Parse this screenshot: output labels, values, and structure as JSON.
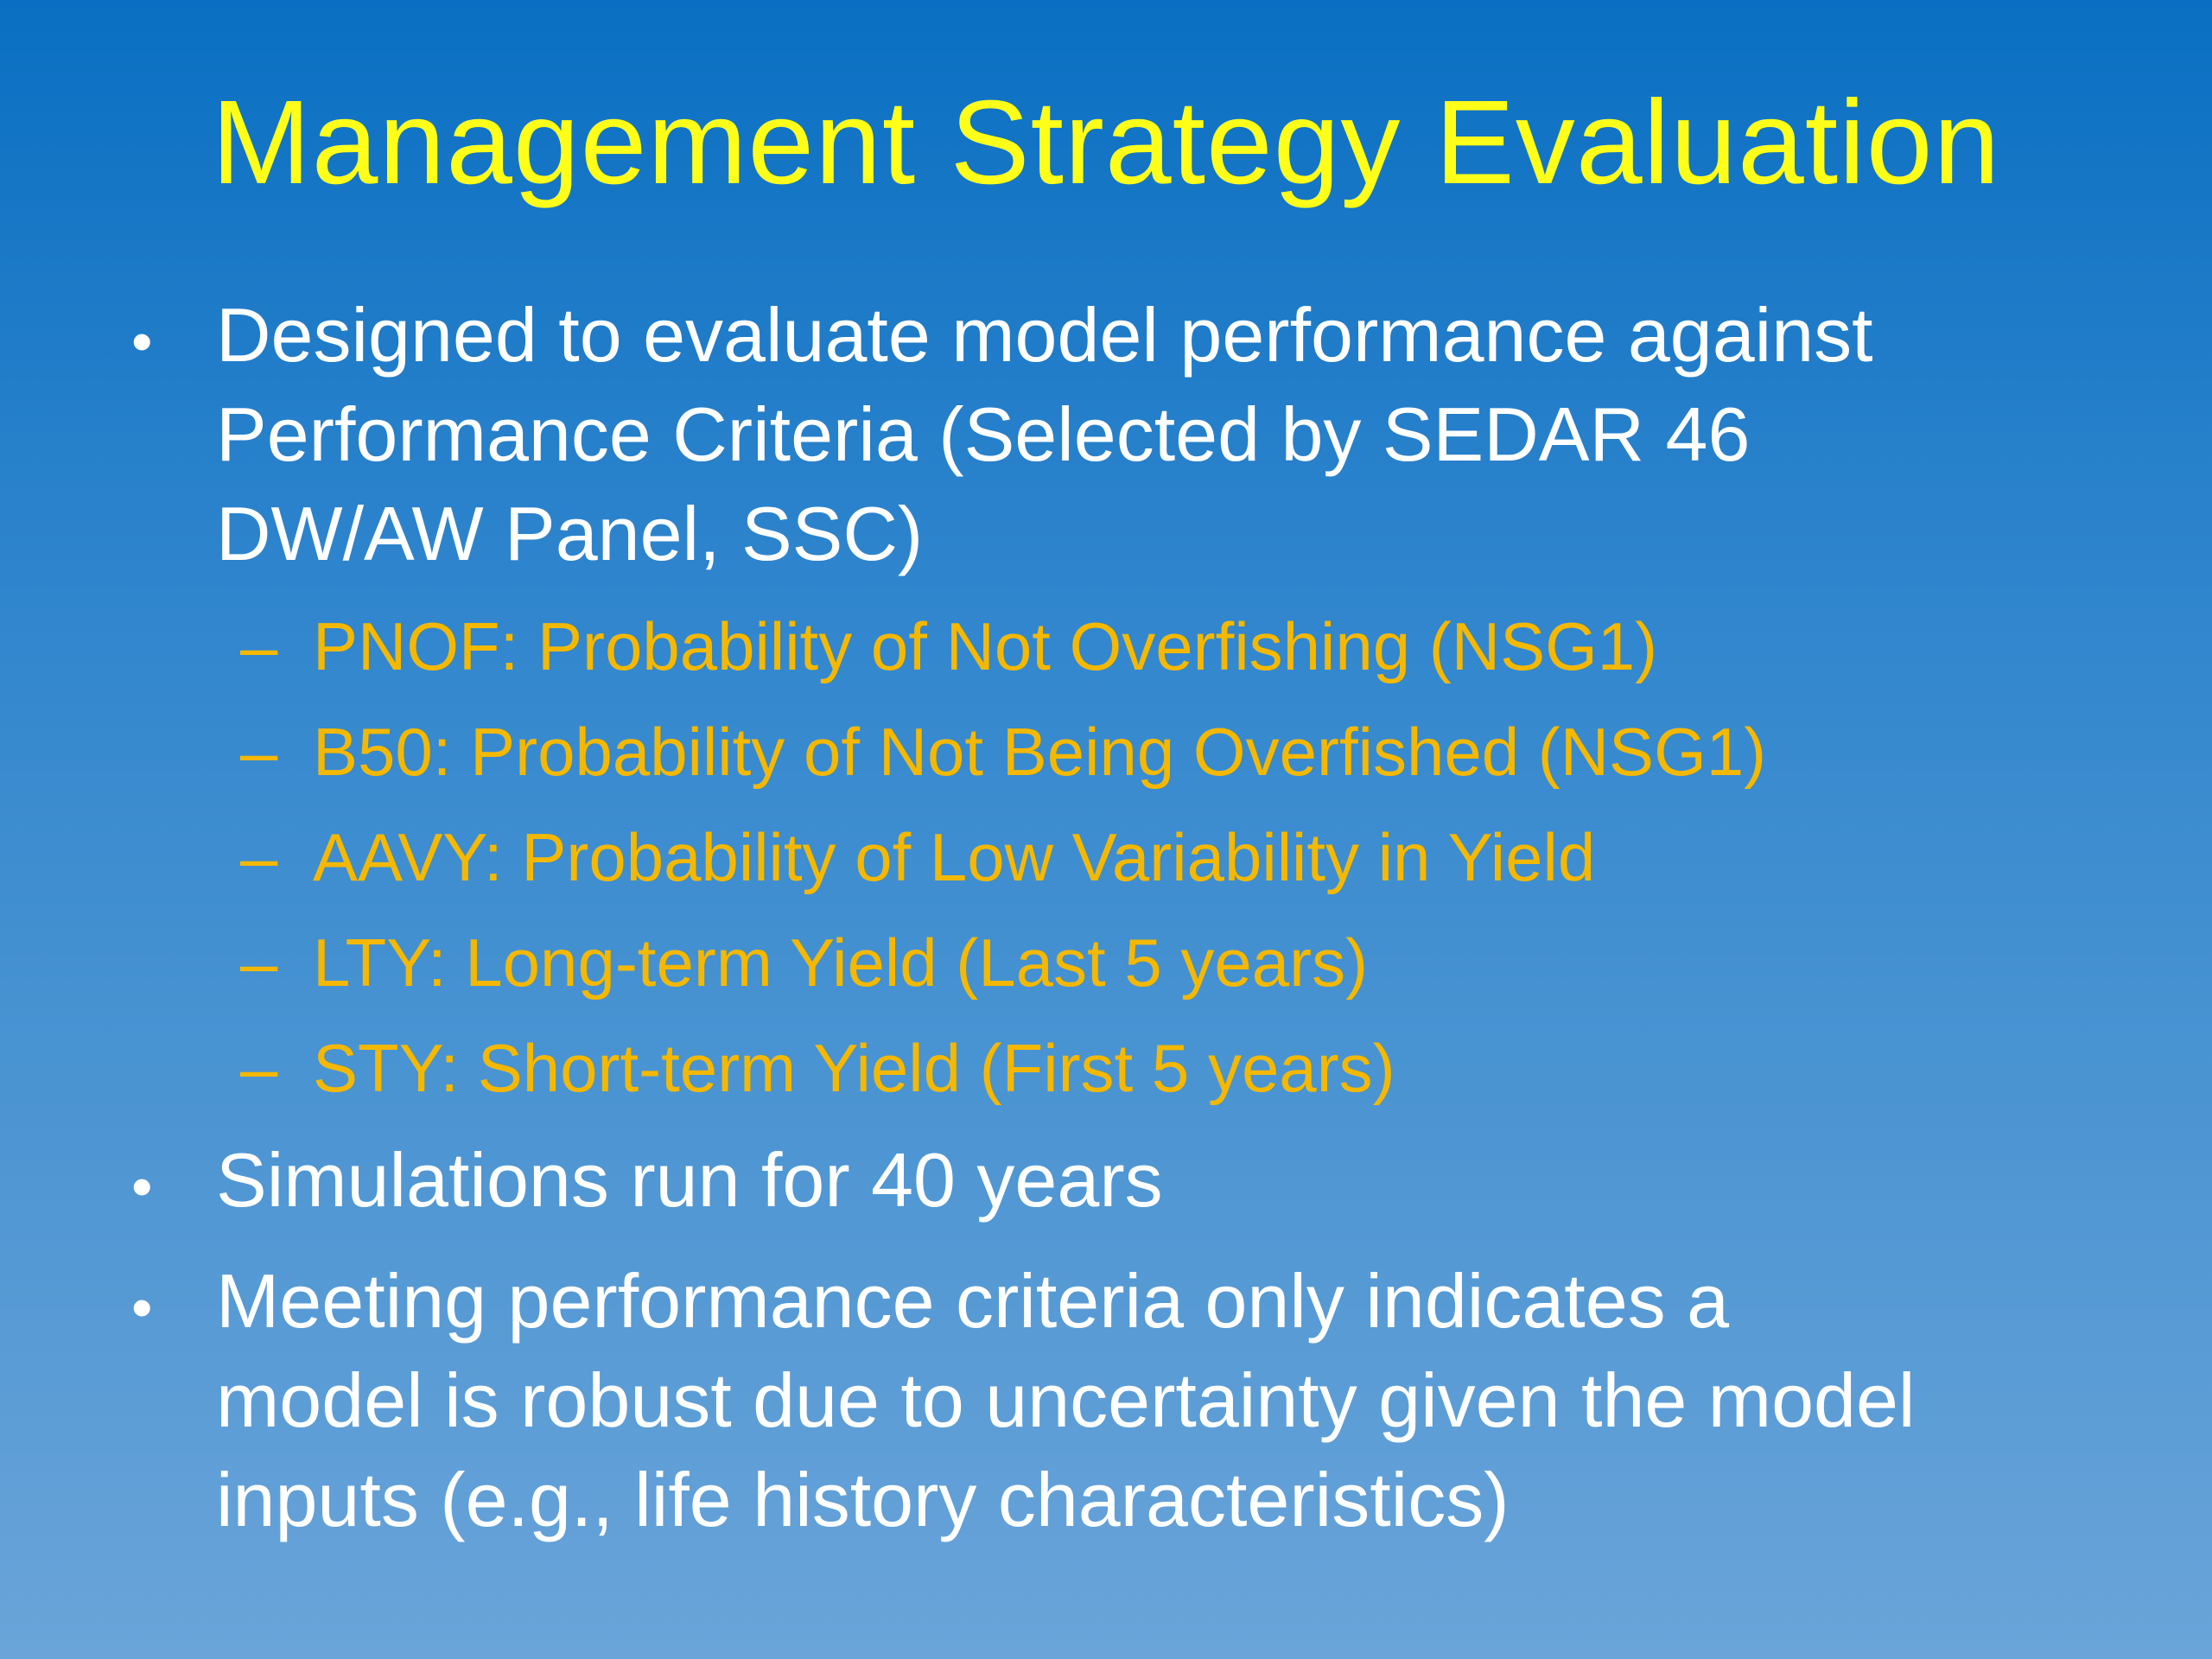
{
  "slide": {
    "title": "Management Strategy Evaluation",
    "bullets": [
      {
        "lines": [
          "Designed to evaluate model performance against",
          "Performance Criteria (Selected by SEDAR 46",
          "DW/AW Panel, SSC)"
        ],
        "sub_items": [
          "PNOF: Probability of Not Overfishing (NSG1)",
          "B50: Probability of Not Being Overfished (NSG1)",
          "AAVY: Probability of Low Variability in Yield",
          "LTY: Long-term Yield (Last 5 years)",
          "STY: Short-term Yield (First 5 years)"
        ]
      },
      {
        "lines": [
          "Simulations run for 40 years"
        ]
      },
      {
        "lines": [
          "Meeting performance criteria only indicates a",
          "model is robust due to uncertainty given the model",
          "inputs (e.g., life history characteristics)"
        ]
      }
    ],
    "bullet_symbol": "•",
    "sub_bullet_symbol": "–"
  },
  "colors": {
    "title": "#ffff1a",
    "body_text": "#ffffff",
    "sub_text": "#f5b800",
    "background_top": "#0a6fc2",
    "background_bottom": "#6aa4d9"
  }
}
